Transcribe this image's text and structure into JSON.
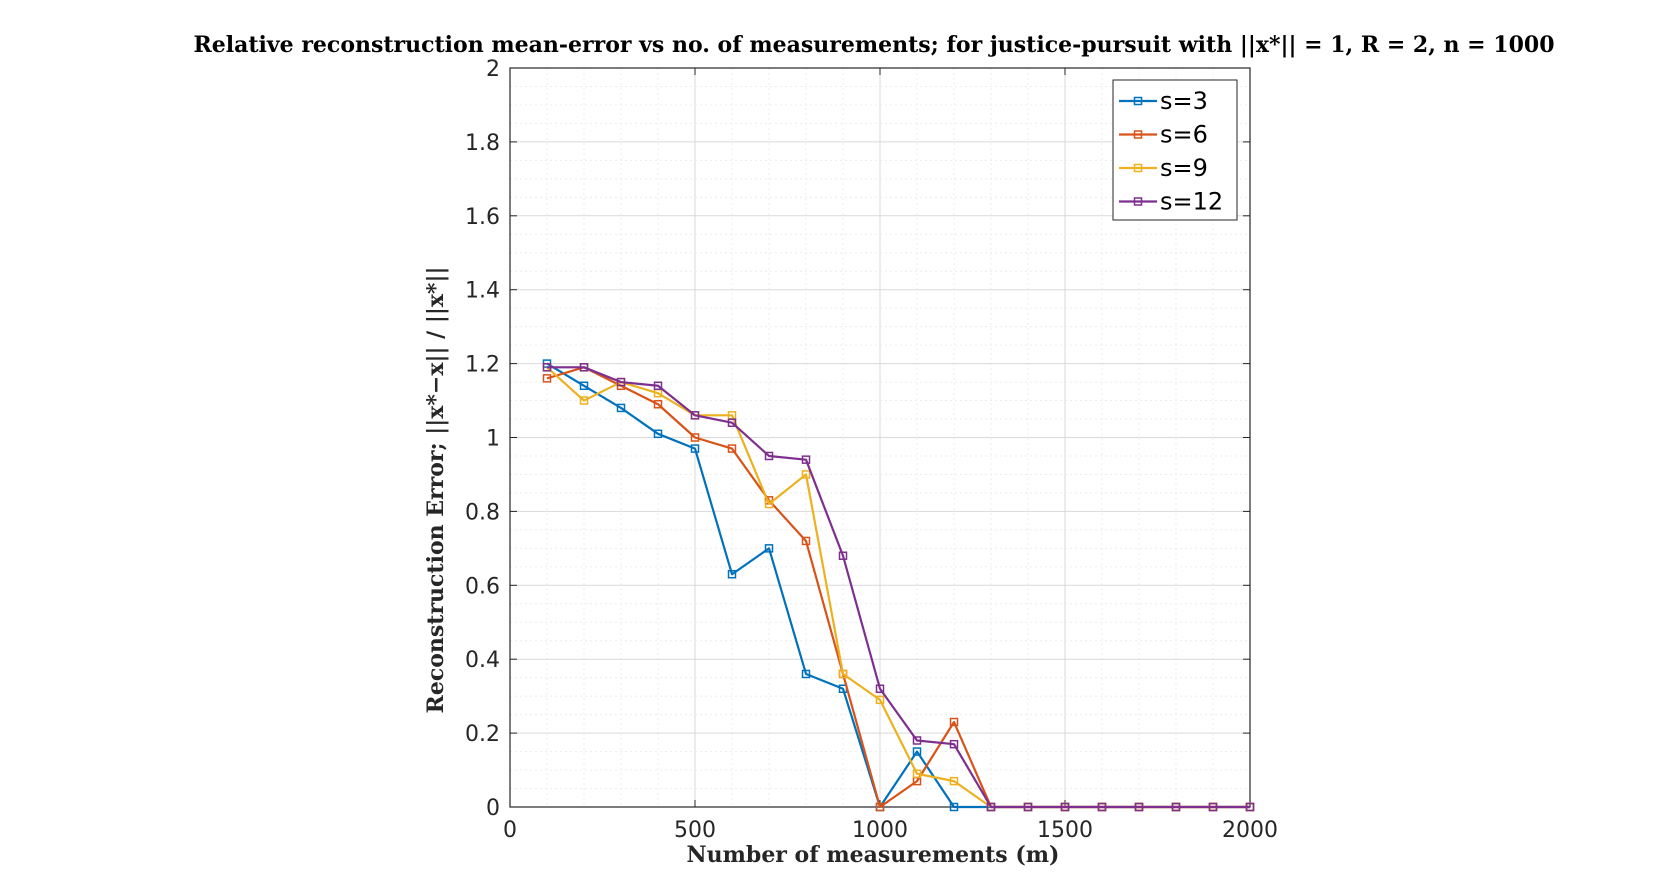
{
  "chart_data": {
    "type": "line",
    "title": "Relative reconstruction mean-error vs no. of measurements; for justice-pursuit with ||x*|| = 1, R = 2, n = 1000",
    "xlabel": "Number of measurements (m)",
    "ylabel": "Reconstruction Error; ||x*−x|| / ||x*||",
    "xlim": [
      0,
      2000
    ],
    "ylim": [
      0,
      2
    ],
    "xticks": [
      0,
      500,
      1000,
      1500,
      2000
    ],
    "yticks": [
      0,
      0.2,
      0.4,
      0.6,
      0.8,
      1,
      1.2,
      1.4,
      1.6,
      1.8,
      2
    ],
    "xtick_labels": [
      "0",
      "500",
      "1000",
      "1500",
      "2000"
    ],
    "ytick_labels": [
      "0",
      "0.2",
      "0.4",
      "0.6",
      "0.8",
      "1",
      "1.2",
      "1.4",
      "1.6",
      "1.8",
      "2"
    ],
    "grid": true,
    "legend_position": "top-right",
    "x": [
      100,
      200,
      300,
      400,
      500,
      600,
      700,
      800,
      900,
      1000,
      1100,
      1200,
      1300,
      1400,
      1500,
      1600,
      1700,
      1800,
      1900,
      2000
    ],
    "series": [
      {
        "name": "s=3",
        "color": "#0072BD",
        "values": [
          1.2,
          1.14,
          1.08,
          1.01,
          0.97,
          0.63,
          0.7,
          0.36,
          0.32,
          0,
          0.15,
          0,
          0,
          0,
          0,
          0,
          0,
          0,
          0,
          0
        ]
      },
      {
        "name": "s=6",
        "color": "#D95319",
        "values": [
          1.16,
          1.19,
          1.14,
          1.09,
          1.0,
          0.97,
          0.83,
          0.72,
          0.36,
          0,
          0.07,
          0.23,
          0,
          0,
          0,
          0,
          0,
          0,
          0,
          0
        ]
      },
      {
        "name": "s=9",
        "color": "#EDB120",
        "values": [
          1.19,
          1.1,
          1.15,
          1.12,
          1.06,
          1.06,
          0.82,
          0.9,
          0.36,
          0.29,
          0.09,
          0.07,
          0,
          0,
          0,
          0,
          0,
          0,
          0,
          0
        ]
      },
      {
        "name": "s=12",
        "color": "#7E2F8E",
        "values": [
          1.19,
          1.19,
          1.15,
          1.14,
          1.06,
          1.04,
          0.95,
          0.94,
          0.68,
          0.32,
          0.18,
          0.17,
          0,
          0,
          0,
          0,
          0,
          0,
          0,
          0
        ]
      }
    ]
  }
}
